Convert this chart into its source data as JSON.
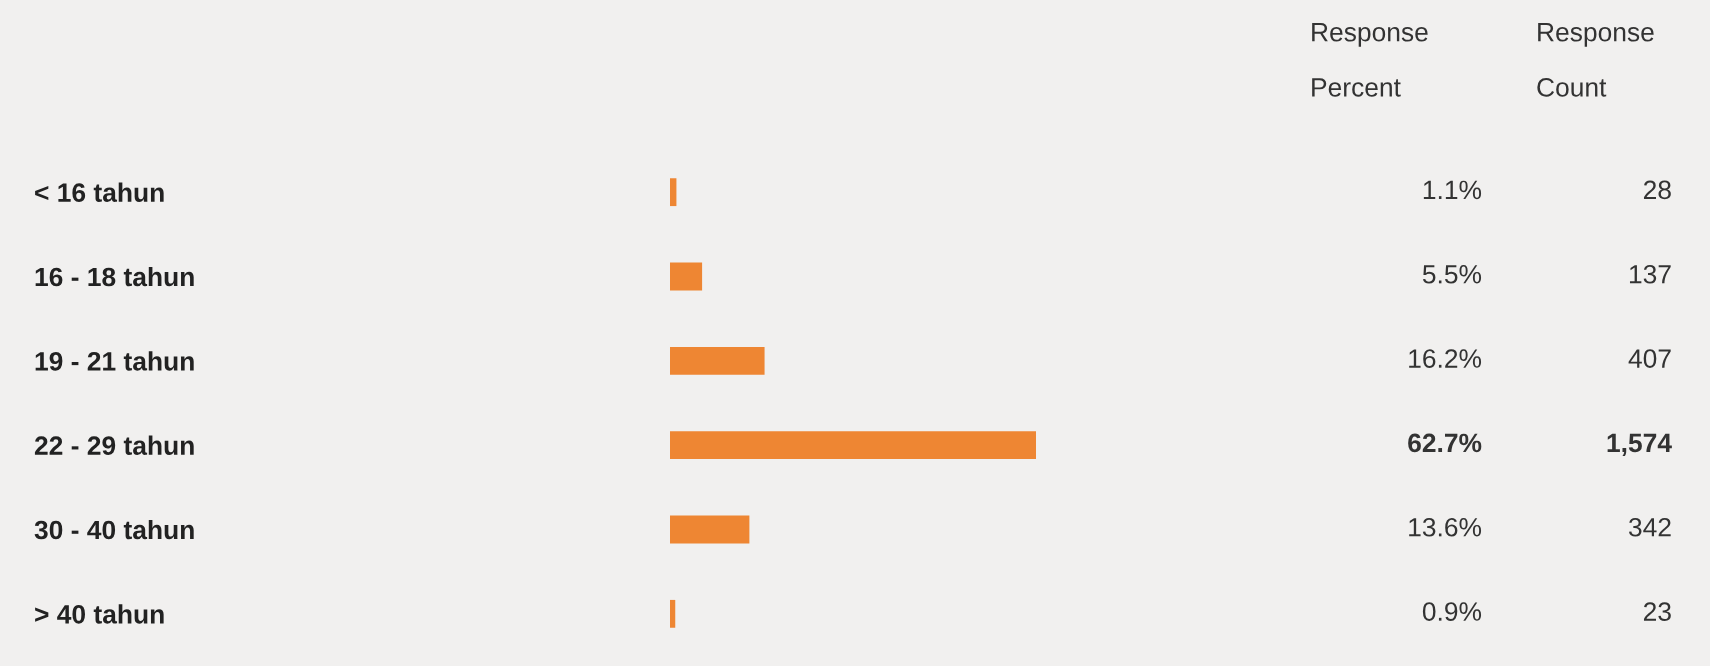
{
  "chart_data": {
    "type": "bar",
    "orientation": "horizontal",
    "categories": [
      "< 16 tahun",
      "16 - 18 tahun",
      "19 - 21 tahun",
      "22 - 29 tahun",
      "30 - 40 tahun",
      "> 40 tahun"
    ],
    "values": [
      1.1,
      5.5,
      16.2,
      62.7,
      13.6,
      0.9
    ],
    "value_labels": [
      "1.1%",
      "5.5%",
      "16.2%",
      "62.7%",
      "13.6%",
      "0.9%"
    ],
    "color": "#ee8633",
    "tick_labels": "y",
    "grid": false,
    "legend": false,
    "annotations": [
      "Response\nPercent",
      "Response\nCount",
      "28",
      "137",
      "407",
      "1,574",
      "342",
      "23"
    ]
  }
}
